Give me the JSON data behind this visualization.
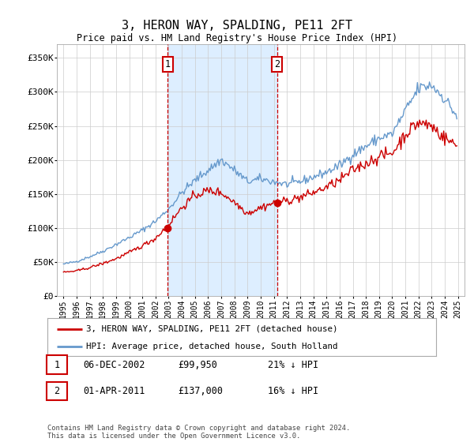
{
  "title": "3, HERON WAY, SPALDING, PE11 2FT",
  "subtitle": "Price paid vs. HM Land Registry's House Price Index (HPI)",
  "ylim": [
    0,
    370000
  ],
  "yticks": [
    0,
    50000,
    100000,
    150000,
    200000,
    250000,
    300000,
    350000
  ],
  "ytick_labels": [
    "£0",
    "£50K",
    "£100K",
    "£150K",
    "£200K",
    "£250K",
    "£300K",
    "£350K"
  ],
  "sale1": {
    "date_label": "06-DEC-2002",
    "price": 99950,
    "pct": "21%",
    "direction": "↓",
    "x_year": 2002.92
  },
  "sale2": {
    "date_label": "01-APR-2011",
    "price": 137000,
    "pct": "16%",
    "direction": "↓",
    "x_year": 2011.25
  },
  "legend1": "3, HERON WAY, SPALDING, PE11 2FT (detached house)",
  "legend2": "HPI: Average price, detached house, South Holland",
  "footer": "Contains HM Land Registry data © Crown copyright and database right 2024.\nThis data is licensed under the Open Government Licence v3.0.",
  "shade_color": "#ddeeff",
  "hpi_color": "#6699cc",
  "price_color": "#cc0000",
  "grid_color": "#cccccc",
  "box_color": "#cc0000",
  "background_color": "#ffffff",
  "hpi_anchors_x": [
    1995,
    1996,
    1997,
    1998,
    1999,
    2000,
    2001,
    2002,
    2003,
    2004,
    2005,
    2006,
    2007,
    2008,
    2009,
    2010,
    2011,
    2012,
    2013,
    2014,
    2015,
    2016,
    2017,
    2018,
    2019,
    2020,
    2021,
    2022,
    2023,
    2024,
    2025
  ],
  "hpi_anchors_y": [
    47000,
    51000,
    58000,
    66000,
    76000,
    86000,
    97000,
    110000,
    128000,
    152000,
    170000,
    185000,
    200000,
    185000,
    168000,
    172000,
    168000,
    164000,
    168000,
    175000,
    182000,
    192000,
    208000,
    220000,
    232000,
    238000,
    272000,
    305000,
    310000,
    290000,
    262000
  ],
  "price_anchors_x": [
    1995,
    1996,
    1997,
    1998,
    1999,
    2000,
    2001,
    2002,
    2003,
    2004,
    2005,
    2006,
    2007,
    2008,
    2009,
    2010,
    2011,
    2012,
    2013,
    2014,
    2015,
    2016,
    2017,
    2018,
    2019,
    2020,
    2021,
    2022,
    2023,
    2024,
    2025
  ],
  "price_anchors_y": [
    35000,
    37000,
    42000,
    48000,
    55000,
    64000,
    74000,
    85000,
    105000,
    130000,
    148000,
    155000,
    152000,
    138000,
    122000,
    130000,
    137000,
    140000,
    145000,
    152000,
    160000,
    170000,
    185000,
    195000,
    205000,
    210000,
    238000,
    255000,
    250000,
    232000,
    220000
  ],
  "xlim": [
    1994.5,
    2025.5
  ],
  "xtick_years": [
    1995,
    1996,
    1997,
    1998,
    1999,
    2000,
    2001,
    2002,
    2003,
    2004,
    2005,
    2006,
    2007,
    2008,
    2009,
    2010,
    2011,
    2012,
    2013,
    2014,
    2015,
    2016,
    2017,
    2018,
    2019,
    2020,
    2021,
    2022,
    2023,
    2024,
    2025
  ]
}
